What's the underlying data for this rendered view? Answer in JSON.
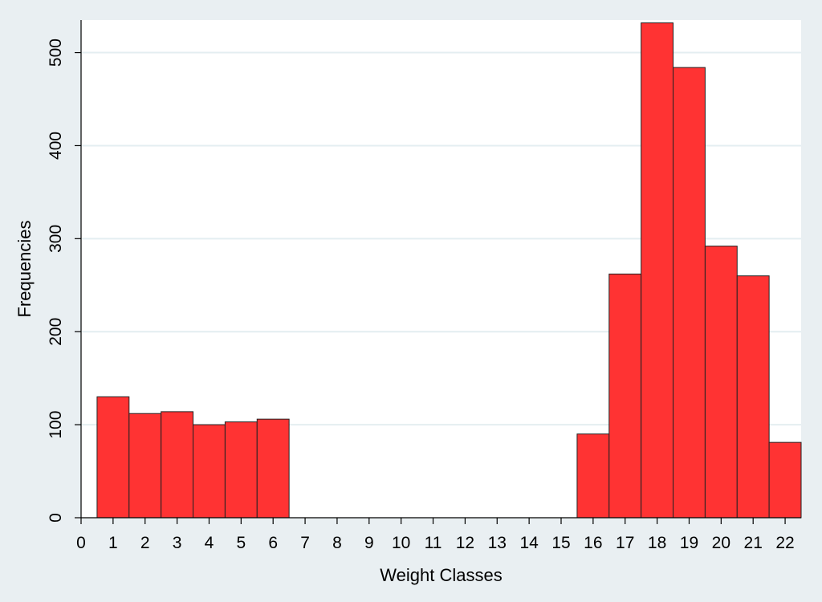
{
  "chart_data": {
    "type": "bar",
    "xlabel": "Weight Classes",
    "ylabel": "Frequencies",
    "xlim": [
      0,
      22.5
    ],
    "ylim": [
      0,
      535
    ],
    "x_ticks": [
      0,
      1,
      2,
      3,
      4,
      5,
      6,
      7,
      8,
      9,
      10,
      11,
      12,
      13,
      14,
      15,
      16,
      17,
      18,
      19,
      20,
      21,
      22
    ],
    "y_ticks": [
      0,
      100,
      200,
      300,
      400,
      500
    ],
    "grid": true,
    "categories": [
      "1",
      "2",
      "3",
      "4",
      "5",
      "6",
      "7",
      "8",
      "9",
      "10",
      "11",
      "12",
      "13",
      "14",
      "15",
      "16",
      "17",
      "18",
      "19",
      "20",
      "21",
      "22"
    ],
    "values": [
      130,
      112,
      114,
      100,
      103,
      106,
      0,
      0,
      0,
      0,
      0,
      0,
      0,
      0,
      0,
      90,
      262,
      532,
      484,
      292,
      260,
      81
    ],
    "colors": {
      "bar_fill": "#ff3333",
      "bar_stroke": "#222222",
      "plot_background": "#ffffff",
      "outer_background": "#e9eff2",
      "grid": "#e4eef1"
    }
  }
}
